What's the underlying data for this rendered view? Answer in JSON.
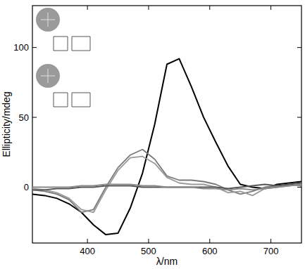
{
  "chart_data": {
    "type": "line",
    "x_label": "λ/nm",
    "y_label": "Ellipticity/mdeg",
    "x": [
      310,
      330,
      350,
      370,
      390,
      410,
      430,
      450,
      470,
      490,
      510,
      530,
      550,
      570,
      590,
      610,
      630,
      650,
      670,
      690,
      710,
      730,
      750
    ],
    "series": [
      {
        "color": "#000000",
        "values": [
          -5,
          -6,
          -8,
          -12,
          -18,
          -27,
          -34,
          -33,
          -15,
          10,
          45,
          88,
          92,
          72,
          50,
          32,
          15,
          2,
          0,
          -1,
          2,
          3,
          4
        ]
      },
      {
        "color": "#7a7a7a",
        "values": [
          -2,
          -3,
          -5,
          -9,
          -18,
          -16,
          0,
          14,
          23,
          27,
          20,
          8,
          5,
          5,
          4,
          2,
          -2,
          -5,
          -3,
          0,
          1,
          2,
          1
        ]
      },
      {
        "color": "#9a9a9a",
        "values": [
          -1,
          -2,
          -4,
          -8,
          -16,
          -18,
          -2,
          12,
          21,
          22,
          17,
          7,
          3,
          2,
          2,
          0,
          -4,
          -3,
          -6,
          -1,
          0,
          1,
          2
        ]
      },
      {
        "color": "#555555",
        "values": [
          -2,
          -2,
          -1,
          -1,
          0,
          0,
          1,
          1,
          1,
          0,
          0,
          0,
          0,
          0,
          0,
          0,
          -1,
          0,
          1,
          2,
          1,
          2,
          3
        ]
      },
      {
        "color": "#8a8a8a",
        "values": [
          0,
          0,
          0,
          0,
          1,
          1,
          2,
          2,
          2,
          1,
          1,
          0,
          0,
          0,
          -1,
          -1,
          -2,
          -1,
          -2,
          -1,
          0,
          1,
          2
        ]
      }
    ],
    "xlim": [
      310,
      750
    ],
    "xticks": [
      400,
      500,
      600,
      700
    ],
    "ylim": [
      -40,
      130
    ],
    "yticks": [
      0,
      50,
      100
    ]
  }
}
